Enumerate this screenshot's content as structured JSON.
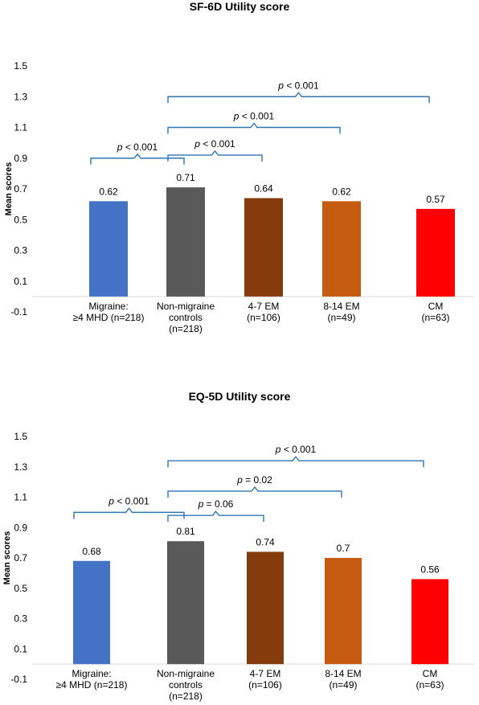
{
  "chart_data": [
    {
      "type": "bar",
      "title": "SF-6D Utility  score",
      "ylabel": "Mean scores",
      "ylim": [
        -0.1,
        1.5
      ],
      "yticks": [
        "1.5",
        "1.3",
        "1.1",
        "0.9",
        "0.7",
        "0.5",
        "0.3",
        "0.1",
        "-0.1"
      ],
      "categories": [
        [
          "Migraine:",
          "≥4 MHD  (n=218)"
        ],
        [
          "Non-migraine",
          "controls",
          "(n=218)"
        ],
        [
          "4-7 EM",
          "(n=106)"
        ],
        [
          "8-14 EM",
          "(n=49)"
        ],
        [
          "CM",
          "(n=63)"
        ]
      ],
      "values": [
        0.62,
        0.71,
        0.64,
        0.62,
        0.57
      ],
      "value_labels": [
        "0.62",
        "0.71",
        "0.64",
        "0.62",
        "0.57"
      ],
      "colors": [
        "#4472c4",
        "#595959",
        "#843c0c",
        "#c55a11",
        "#ff0000"
      ],
      "annotations": [
        {
          "from": 0,
          "to": 1,
          "y": 0.9,
          "p": "p",
          "text": " < 0.001"
        },
        {
          "from": 1,
          "to": 2,
          "y": 0.92,
          "p": "p",
          "text": " < 0.001"
        },
        {
          "from": 1,
          "to": 3,
          "y": 1.1,
          "p": "p",
          "text": " < 0.001"
        },
        {
          "from": 1,
          "to": 4,
          "y": 1.3,
          "p": "p",
          "text": " < 0.001"
        }
      ]
    },
    {
      "type": "bar",
      "title": "EQ-5D Utility  score",
      "ylabel": "Mean scores",
      "ylim": [
        -0.1,
        1.5
      ],
      "yticks": [
        "1.5",
        "1.3",
        "1.1",
        "0.9",
        "0.7",
        "0.5",
        "0.3",
        "0.1",
        "-0.1"
      ],
      "categories": [
        [
          "Migraine:",
          "≥4 MHD  (n=218)"
        ],
        [
          "Non-migraine",
          "controls",
          "(n=218)"
        ],
        [
          "4-7 EM",
          "(n=106)"
        ],
        [
          "8-14 EM",
          "(n=49)"
        ],
        [
          "CM",
          "(n=63)"
        ]
      ],
      "values": [
        0.68,
        0.81,
        0.74,
        0.7,
        0.56
      ],
      "value_labels": [
        "0.68",
        "0.81",
        "0.74",
        "0.7",
        "0.56"
      ],
      "colors": [
        "#4472c4",
        "#595959",
        "#843c0c",
        "#c55a11",
        "#ff0000"
      ],
      "annotations": [
        {
          "from": 0,
          "to": 1,
          "y": 1.0,
          "p": "p",
          "text": " < 0.001"
        },
        {
          "from": 1,
          "to": 2,
          "y": 0.98,
          "p": "p",
          "text": " = 0.06"
        },
        {
          "from": 1,
          "to": 3,
          "y": 1.14,
          "p": "p",
          "text": " = 0.02"
        },
        {
          "from": 1,
          "to": 4,
          "y": 1.34,
          "p": "p",
          "text": " < 0.001"
        }
      ]
    }
  ]
}
